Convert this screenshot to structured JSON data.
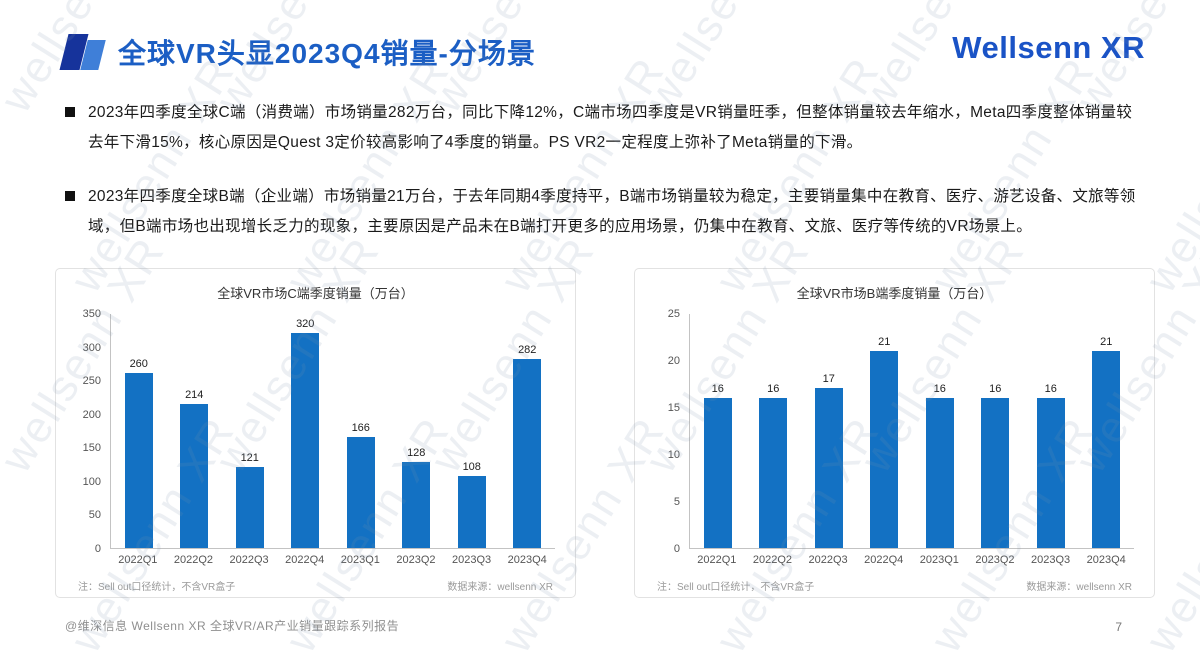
{
  "header": {
    "title": "全球VR头显2023Q4销量-分场景",
    "logo": "Wellsenn XR"
  },
  "bullets": [
    "2023年四季度全球C端（消费端）市场销量282万台，同比下降12%，C端市场四季度是VR销量旺季，但整体销量较去年缩水，Meta四季度整体销量较去年下滑15%，核心原因是Quest 3定价较高影响了4季度的销量。PS VR2一定程度上弥补了Meta销量的下滑。",
    "2023年四季度全球B端（企业端）市场销量21万台，于去年同期4季度持平，B端市场销量较为稳定，主要销量集中在教育、医疗、游艺设备、文旅等领域，但B端市场也出现增长乏力的现象，主要原因是产品未在B端打开更多的应用场景，仍集中在教育、文旅、医疗等传统的VR场景上。"
  ],
  "chart_data": [
    {
      "type": "bar",
      "title": "全球VR市场C端季度销量（万台）",
      "categories": [
        "2022Q1",
        "2022Q2",
        "2022Q3",
        "2022Q4",
        "2023Q1",
        "2023Q2",
        "2023Q3",
        "2023Q4"
      ],
      "values": [
        260,
        214,
        121,
        320,
        166,
        128,
        108,
        282
      ],
      "ylim": [
        0,
        350
      ],
      "ytick_step": 50,
      "bar_color": "#1371c3",
      "legend": "none",
      "grid": "off",
      "note_left": "注：Sell out口径统计，不含VR盒子",
      "note_right": "数据来源：wellsenn XR"
    },
    {
      "type": "bar",
      "title": "全球VR市场B端季度销量（万台）",
      "categories": [
        "2022Q1",
        "2022Q2",
        "2022Q3",
        "2022Q4",
        "2023Q1",
        "2023Q2",
        "2023Q3",
        "2023Q4"
      ],
      "values": [
        16,
        16,
        17,
        21,
        16,
        16,
        16,
        21
      ],
      "ylim": [
        0,
        25
      ],
      "ytick_step": 5,
      "bar_color": "#1371c3",
      "legend": "none",
      "grid": "off",
      "note_left": "注：Sell out口径统计，不含VR盒子",
      "note_right": "数据来源：wellsenn XR"
    }
  ],
  "footer": {
    "left": "@维深信息 Wellsenn XR 全球VR/AR产业销量跟踪系列报告",
    "page": "7"
  },
  "watermark": {
    "text": "wellsenn XR"
  },
  "colors": {
    "accent": "#1b5ec4",
    "bar": "#1371c3"
  }
}
